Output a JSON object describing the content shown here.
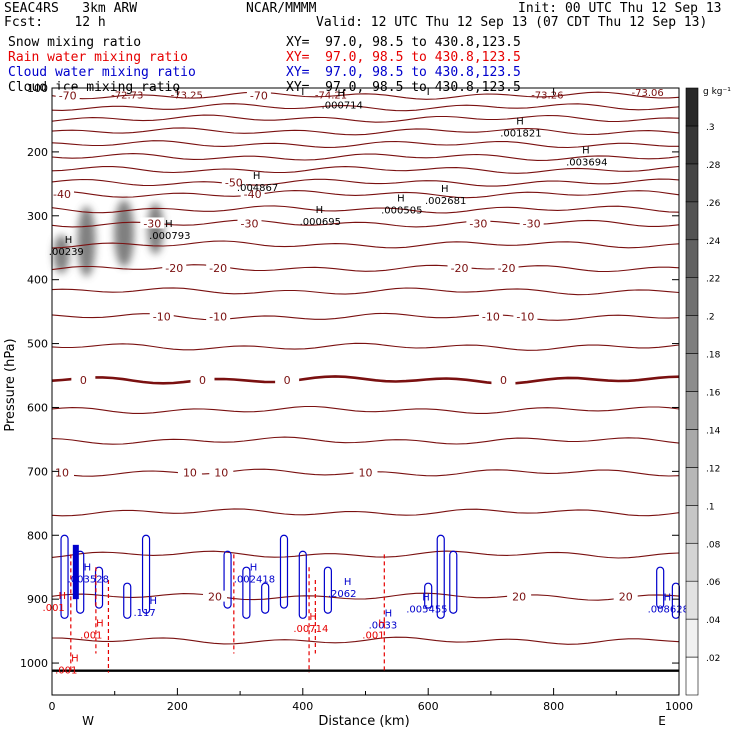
{
  "header": {
    "project": "SEAC4RS   3km ARW",
    "center": "NCAR/MMMM",
    "init": "Init: 00 UTC Thu 12 Sep 13",
    "fcst_label": "Fcst:    12 h",
    "valid": "Valid: 12 UTC Thu 12 Sep 13 (07 CDT Thu 12 Sep 13)"
  },
  "legend": [
    {
      "name": "Snow mixing ratio",
      "xy": "XY=  97.0, 98.5 to 430.8,123.5",
      "color": "#000000"
    },
    {
      "name": "Rain water mixing ratio",
      "xy": "XY=  97.0, 98.5 to 430.8,123.5",
      "color": "#e60000"
    },
    {
      "name": "Cloud water mixing ratio",
      "xy": "XY=  97.0, 98.5 to 430.8,123.5",
      "color": "#0000cc"
    },
    {
      "name": "Cloud ice mixing ratio",
      "xy": "XY=  97.0, 98.5 to 430.8,123.5",
      "color": "#000000"
    }
  ],
  "chart_data": {
    "type": "cross-section",
    "xlabel": "Distance (km)",
    "ylabel": "Pressure (hPa)",
    "xlim": [
      0,
      1000
    ],
    "ylim": [
      100,
      1050
    ],
    "x_ticks": [
      0,
      200,
      400,
      600,
      800,
      1000
    ],
    "y_ticks": [
      100,
      200,
      300,
      400,
      500,
      600,
      700,
      800,
      900,
      1000
    ],
    "x_tick_labels": [
      "0",
      "200",
      "400",
      "600",
      "800",
      "1000"
    ],
    "y_tick_labels": [
      "100",
      "200",
      "300",
      "400",
      "500",
      "600",
      "700",
      "800",
      "900",
      "1000"
    ],
    "endpoints": {
      "left": "W",
      "right": "E"
    },
    "colorbar": {
      "unit": "g kg⁻¹",
      "levels": [
        0.02,
        0.04,
        0.06,
        0.08,
        0.1,
        0.12,
        0.14,
        0.16,
        0.18,
        0.2,
        0.22,
        0.24,
        0.26,
        0.28,
        0.3
      ],
      "labels": [
        ".02",
        ".04",
        ".06",
        ".08",
        ".1",
        ".12",
        ".14",
        ".16",
        ".18",
        ".2",
        ".22",
        ".24",
        ".26",
        ".28",
        ".3"
      ]
    },
    "temperature_contours": [
      {
        "p": 112,
        "label": "-70",
        "label_x": [
          25,
          330
        ]
      },
      {
        "p": 130,
        "label": "",
        "label_x": []
      },
      {
        "p": 148,
        "label": "",
        "label_x": []
      },
      {
        "p": 168,
        "label": "",
        "label_x": []
      },
      {
        "p": 188,
        "label": "",
        "label_x": []
      },
      {
        "p": 208,
        "label": "",
        "label_x": []
      },
      {
        "p": 228,
        "label": "",
        "label_x": []
      },
      {
        "p": 248,
        "label": "-50",
        "label_x": [
          290
        ]
      },
      {
        "p": 266,
        "label": "-40",
        "label_x": [
          -5,
          320
        ]
      },
      {
        "p": 290,
        "label": "",
        "label_x": []
      },
      {
        "p": 312,
        "label": "-30",
        "label_x": [
          160,
          315,
          680,
          765
        ]
      },
      {
        "p": 345,
        "label": "",
        "label_x": []
      },
      {
        "p": 382,
        "label": "-20",
        "label_x": [
          195,
          265,
          650,
          725
        ]
      },
      {
        "p": 418,
        "label": "",
        "label_x": []
      },
      {
        "p": 458,
        "label": "-10",
        "label_x": [
          175,
          265,
          700,
          755
        ]
      },
      {
        "p": 505,
        "label": "",
        "label_x": []
      },
      {
        "p": 557,
        "label": "0",
        "label_x": [
          50,
          240,
          375,
          720
        ],
        "bold": true
      },
      {
        "p": 604,
        "label": "",
        "label_x": []
      },
      {
        "p": 652,
        "label": "",
        "label_x": []
      },
      {
        "p": 702,
        "label": "10",
        "label_x": [
          15,
          220,
          270,
          500
        ]
      },
      {
        "p": 764,
        "label": "",
        "label_x": []
      },
      {
        "p": 830,
        "label": "",
        "label_x": []
      },
      {
        "p": 896,
        "label": "20",
        "label_x": [
          260,
          745,
          915
        ]
      },
      {
        "p": 965,
        "label": "",
        "label_x": []
      }
    ],
    "top_minima": [
      {
        "x": 120,
        "p": 110,
        "label": "-72.73"
      },
      {
        "x": 215,
        "p": 110,
        "label": "-73.25"
      },
      {
        "x": 445,
        "p": 110,
        "label": "-74.21"
      },
      {
        "x": 790,
        "p": 110,
        "label": "-73.26"
      },
      {
        "x": 950,
        "p": 106,
        "label": "-73.06"
      }
    ],
    "maxima": [
      {
        "x": 465,
        "p": 126,
        "label": ".000714",
        "color": "#000000"
      },
      {
        "x": 750,
        "p": 170,
        "label": ".001821",
        "color": "#000000"
      },
      {
        "x": 855,
        "p": 215,
        "label": ".003694",
        "color": "#000000"
      },
      {
        "x": 330,
        "p": 255,
        "label": ".004867",
        "color": "#000000"
      },
      {
        "x": 630,
        "p": 275,
        "label": ".002681",
        "color": "#000000"
      },
      {
        "x": 560,
        "p": 290,
        "label": ".000505",
        "color": "#000000"
      },
      {
        "x": 430,
        "p": 308,
        "label": ".000695",
        "color": "#000000"
      },
      {
        "x": 190,
        "p": 330,
        "label": ".000793",
        "color": "#000000"
      },
      {
        "x": 30,
        "p": 355,
        "label": ".00239",
        "color": "#000000"
      },
      {
        "x": 60,
        "p": 868,
        "label": ".003528",
        "color": "#0000cc"
      },
      {
        "x": 325,
        "p": 868,
        "label": ".002418",
        "color": "#0000cc"
      },
      {
        "x": 475,
        "p": 890,
        "label": ".2062",
        "color": "#0000cc"
      },
      {
        "x": 165,
        "p": 920,
        "label": ".117",
        "color": "#0000cc"
      },
      {
        "x": 600,
        "p": 915,
        "label": ".005455",
        "color": "#0000cc"
      },
      {
        "x": 540,
        "p": 940,
        "label": ".0033",
        "color": "#0000cc"
      },
      {
        "x": 985,
        "p": 915,
        "label": ".008628",
        "color": "#0000cc"
      },
      {
        "x": 420,
        "p": 945,
        "label": ".00714",
        "color": "#e60000"
      },
      {
        "x": 530,
        "p": 955,
        "label": ".001",
        "color": "#e60000"
      },
      {
        "x": 80,
        "p": 955,
        "label": ".001",
        "color": "#e60000"
      },
      {
        "x": 40,
        "p": 1010,
        "label": ".001",
        "color": "#e60000"
      },
      {
        "x": 20,
        "p": 912,
        "label": ".001",
        "color": "#e60000"
      }
    ],
    "snow_shading": [
      {
        "x": 15,
        "p1": 330,
        "p2": 390,
        "w": 16
      },
      {
        "x": 55,
        "p1": 285,
        "p2": 395,
        "w": 18
      },
      {
        "x": 115,
        "p1": 275,
        "p2": 380,
        "w": 20
      },
      {
        "x": 165,
        "p1": 280,
        "p2": 360,
        "w": 16
      }
    ]
  }
}
